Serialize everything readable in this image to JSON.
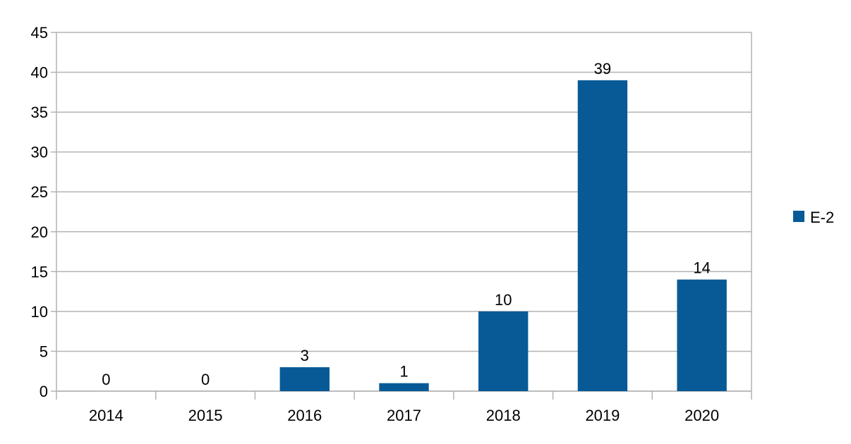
{
  "chart_data": {
    "type": "bar",
    "categories": [
      "2014",
      "2015",
      "2016",
      "2017",
      "2018",
      "2019",
      "2020"
    ],
    "series": [
      {
        "name": "E-2",
        "values": [
          0,
          0,
          3,
          1,
          10,
          39,
          14
        ],
        "color": "#075a96"
      }
    ],
    "title": "",
    "xlabel": "",
    "ylabel": "",
    "ylim": [
      0,
      45
    ],
    "yticks": [
      0,
      5,
      10,
      15,
      20,
      25,
      30,
      35,
      40,
      45
    ],
    "grid": true,
    "grid_color": "#b3b3b3",
    "data_labels": true,
    "legend": {
      "placement": "right",
      "entries": [
        "E-2"
      ]
    }
  }
}
